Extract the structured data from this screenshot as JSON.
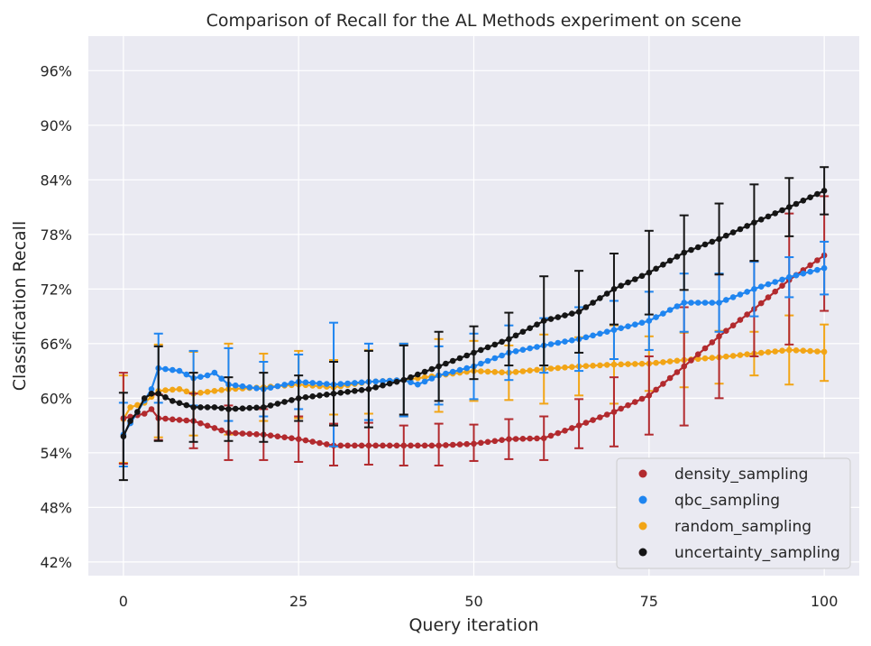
{
  "chart_data": {
    "type": "line",
    "title": "Comparison of Recall for the AL Methods experiment on scene",
    "xlabel": "Query iteration",
    "ylabel": "Classification Recall",
    "xlim": [
      -5,
      105
    ],
    "ylim": [
      40.5,
      99.8
    ],
    "xticks": [
      0,
      25,
      50,
      75,
      100
    ],
    "yticks": [
      42,
      48,
      54,
      60,
      66,
      72,
      78,
      84,
      90,
      96
    ],
    "ytick_format": "percent",
    "grid": true,
    "legend_position": "lower-right",
    "background_color": "#eaeaf2",
    "series": [
      {
        "name": "density_sampling",
        "color": "#b22a2e",
        "knots": [
          [
            0,
            57.8
          ],
          [
            3,
            58.3
          ],
          [
            4,
            58.8
          ],
          [
            5,
            57.8
          ],
          [
            10,
            57.5
          ],
          [
            15,
            56.2
          ],
          [
            20,
            56.0
          ],
          [
            25,
            55.5
          ],
          [
            30,
            54.8
          ],
          [
            35,
            54.8
          ],
          [
            40,
            54.8
          ],
          [
            45,
            54.8
          ],
          [
            50,
            55.0
          ],
          [
            55,
            55.5
          ],
          [
            60,
            55.6
          ],
          [
            65,
            57.0
          ],
          [
            70,
            58.5
          ],
          [
            75,
            60.3
          ],
          [
            80,
            63.5
          ],
          [
            85,
            66.8
          ],
          [
            90,
            69.8
          ],
          [
            95,
            73.0
          ],
          [
            100,
            75.7
          ]
        ],
        "error_bars": [
          [
            0,
            57.8,
            5.0
          ],
          [
            5,
            57.9,
            2.5
          ],
          [
            10,
            57.5,
            3.0
          ],
          [
            15,
            56.2,
            3.0
          ],
          [
            20,
            56.0,
            2.8
          ],
          [
            25,
            55.5,
            2.5
          ],
          [
            30,
            54.9,
            2.3
          ],
          [
            35,
            55.0,
            2.3
          ],
          [
            40,
            54.8,
            2.2
          ],
          [
            45,
            54.9,
            2.3
          ],
          [
            50,
            55.1,
            2.0
          ],
          [
            55,
            55.5,
            2.2
          ],
          [
            60,
            55.6,
            2.4
          ],
          [
            65,
            57.2,
            2.7
          ],
          [
            70,
            58.5,
            3.8
          ],
          [
            75,
            60.3,
            4.3
          ],
          [
            80,
            63.5,
            6.5
          ],
          [
            85,
            66.8,
            6.8
          ],
          [
            90,
            69.8,
            5.2
          ],
          [
            95,
            73.1,
            7.2
          ],
          [
            100,
            75.9,
            6.3
          ]
        ]
      },
      {
        "name": "qbc_sampling",
        "color": "#1f85f0",
        "knots": [
          [
            0,
            56.0
          ],
          [
            2,
            58.5
          ],
          [
            4,
            61.0
          ],
          [
            5,
            63.3
          ],
          [
            8,
            63.0
          ],
          [
            10,
            62.2
          ],
          [
            12,
            62.5
          ],
          [
            13,
            62.8
          ],
          [
            15,
            61.5
          ],
          [
            20,
            61.0
          ],
          [
            25,
            61.8
          ],
          [
            30,
            61.5
          ],
          [
            35,
            61.8
          ],
          [
            40,
            62.0
          ],
          [
            42,
            61.5
          ],
          [
            45,
            62.5
          ],
          [
            50,
            63.5
          ],
          [
            55,
            65.0
          ],
          [
            60,
            65.8
          ],
          [
            65,
            66.5
          ],
          [
            70,
            67.5
          ],
          [
            75,
            68.5
          ],
          [
            80,
            70.5
          ],
          [
            85,
            70.5
          ],
          [
            90,
            72.0
          ],
          [
            95,
            73.3
          ],
          [
            100,
            74.3
          ]
        ],
        "error_bars": [
          [
            0,
            56.0,
            3.5
          ],
          [
            5,
            63.3,
            3.8
          ],
          [
            10,
            62.2,
            3.0
          ],
          [
            15,
            61.5,
            4.0
          ],
          [
            20,
            61.0,
            3.0
          ],
          [
            25,
            61.8,
            3.0
          ],
          [
            30,
            61.5,
            6.8
          ],
          [
            35,
            61.8,
            4.2
          ],
          [
            40,
            62.0,
            4.0
          ],
          [
            45,
            62.5,
            3.2
          ],
          [
            50,
            63.5,
            3.6
          ],
          [
            55,
            65.0,
            3.0
          ],
          [
            60,
            65.8,
            3.0
          ],
          [
            65,
            66.5,
            3.5
          ],
          [
            70,
            67.5,
            3.2
          ],
          [
            75,
            68.5,
            3.2
          ],
          [
            80,
            70.5,
            3.2
          ],
          [
            85,
            70.5,
            3.2
          ],
          [
            90,
            72.0,
            3.0
          ],
          [
            95,
            73.3,
            2.2
          ],
          [
            100,
            74.3,
            2.9
          ]
        ]
      },
      {
        "name": "random_sampling",
        "color": "#f2a516",
        "knots": [
          [
            0,
            57.7
          ],
          [
            1,
            59.0
          ],
          [
            3,
            59.5
          ],
          [
            5,
            60.8
          ],
          [
            8,
            61.0
          ],
          [
            10,
            60.5
          ],
          [
            15,
            61.0
          ],
          [
            20,
            61.2
          ],
          [
            25,
            61.5
          ],
          [
            30,
            61.2
          ],
          [
            35,
            61.8
          ],
          [
            40,
            62.0
          ],
          [
            45,
            62.5
          ],
          [
            50,
            63.0
          ],
          [
            55,
            62.8
          ],
          [
            60,
            63.2
          ],
          [
            65,
            63.5
          ],
          [
            70,
            63.7
          ],
          [
            75,
            63.8
          ],
          [
            80,
            64.2
          ],
          [
            85,
            64.5
          ],
          [
            90,
            64.9
          ],
          [
            95,
            65.3
          ],
          [
            100,
            65.1
          ]
        ],
        "error_bars": [
          [
            0,
            57.7,
            4.8
          ],
          [
            5,
            60.8,
            5.1
          ],
          [
            10,
            60.5,
            4.6
          ],
          [
            15,
            61.0,
            5.0
          ],
          [
            20,
            61.2,
            3.7
          ],
          [
            25,
            61.5,
            3.7
          ],
          [
            30,
            61.2,
            3.0
          ],
          [
            35,
            61.8,
            3.5
          ],
          [
            40,
            62.0,
            4.0
          ],
          [
            45,
            62.5,
            4.0
          ],
          [
            50,
            63.0,
            3.3
          ],
          [
            55,
            62.8,
            3.0
          ],
          [
            60,
            63.2,
            3.8
          ],
          [
            65,
            63.5,
            3.2
          ],
          [
            70,
            63.7,
            4.3
          ],
          [
            75,
            63.8,
            3.0
          ],
          [
            80,
            64.2,
            3.0
          ],
          [
            85,
            64.5,
            2.9
          ],
          [
            90,
            64.9,
            2.4
          ],
          [
            95,
            65.3,
            3.8
          ],
          [
            100,
            65.0,
            3.1
          ]
        ]
      },
      {
        "name": "uncertainty_sampling",
        "color": "#151515",
        "knots": [
          [
            0,
            55.8
          ],
          [
            1,
            57.5
          ],
          [
            2,
            58.5
          ],
          [
            3,
            60.0
          ],
          [
            4,
            60.5
          ],
          [
            5,
            60.5
          ],
          [
            7,
            59.7
          ],
          [
            10,
            59.0
          ],
          [
            13,
            59.0
          ],
          [
            15,
            58.8
          ],
          [
            20,
            59.0
          ],
          [
            25,
            60.0
          ],
          [
            30,
            60.5
          ],
          [
            35,
            61.0
          ],
          [
            40,
            62.0
          ],
          [
            45,
            63.5
          ],
          [
            50,
            65.0
          ],
          [
            55,
            66.5
          ],
          [
            60,
            68.5
          ],
          [
            65,
            69.5
          ],
          [
            70,
            72.0
          ],
          [
            75,
            73.8
          ],
          [
            80,
            76.0
          ],
          [
            85,
            77.5
          ],
          [
            90,
            79.3
          ],
          [
            95,
            81.0
          ],
          [
            100,
            82.8
          ]
        ],
        "error_bars": [
          [
            0,
            55.8,
            4.8
          ],
          [
            5,
            60.5,
            5.2
          ],
          [
            10,
            59.0,
            3.8
          ],
          [
            15,
            58.8,
            3.5
          ],
          [
            20,
            59.0,
            3.8
          ],
          [
            25,
            60.0,
            2.5
          ],
          [
            30,
            60.5,
            3.5
          ],
          [
            35,
            61.0,
            4.2
          ],
          [
            40,
            62.0,
            3.8
          ],
          [
            45,
            63.5,
            3.8
          ],
          [
            50,
            65.0,
            2.9
          ],
          [
            55,
            66.5,
            2.9
          ],
          [
            60,
            68.5,
            4.9
          ],
          [
            65,
            69.5,
            4.5
          ],
          [
            70,
            72.0,
            3.9
          ],
          [
            75,
            73.8,
            4.6
          ],
          [
            80,
            76.0,
            4.1
          ],
          [
            85,
            77.5,
            3.9
          ],
          [
            90,
            79.3,
            4.2
          ],
          [
            95,
            81.0,
            3.2
          ],
          [
            100,
            82.8,
            2.6
          ]
        ]
      }
    ]
  }
}
